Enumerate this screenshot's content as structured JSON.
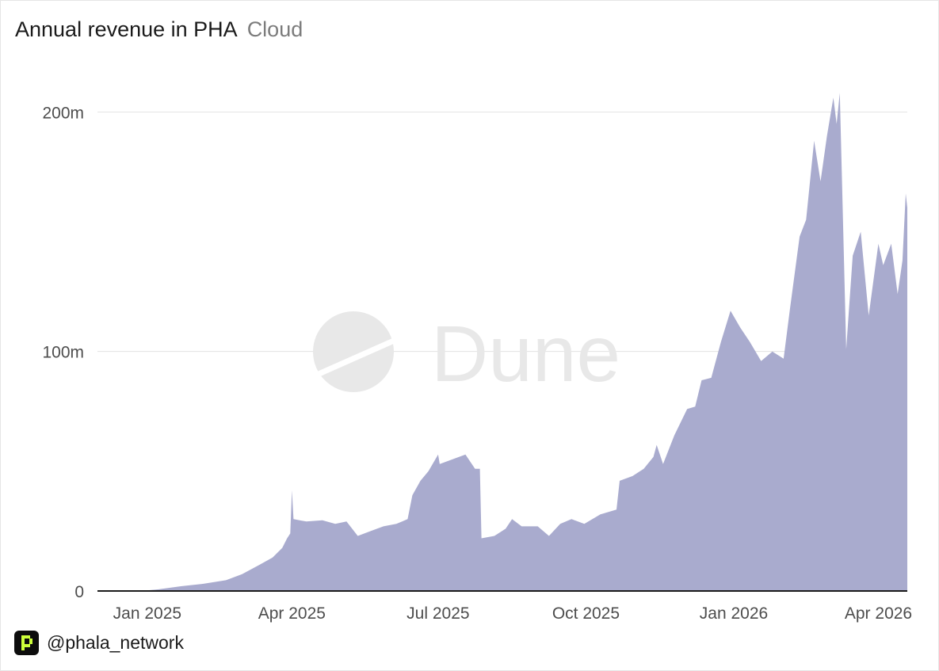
{
  "header": {
    "title": "Annual revenue in PHA",
    "subtitle": "Cloud"
  },
  "watermark": {
    "text": "Dune",
    "icon": "dune-logo-icon"
  },
  "footer": {
    "handle": "@phala_network",
    "icon": "phala-logo-icon"
  },
  "colors": {
    "area": "#a9abce",
    "grid": "#e3e3e3",
    "axis": "#1b1b1b",
    "text": "#4d4d4d",
    "logo_bg": "#0d0d0d",
    "logo_fg": "#cdff3a",
    "watermark": "#e8e8e8"
  },
  "chart_data": {
    "type": "area",
    "title": "Annual revenue in PHA",
    "subtitle": "Cloud",
    "xlabel": "",
    "ylabel": "",
    "y_ticks": [
      0,
      100,
      200
    ],
    "y_tick_labels": [
      "0",
      "100m",
      "200m"
    ],
    "ylim": [
      0,
      215
    ],
    "x_ticks": [
      "2025-01-01",
      "2025-04-01",
      "2025-07-01",
      "2025-10-01",
      "2026-01-01",
      "2026-04-01"
    ],
    "x_tick_labels": [
      "Jan 2025",
      "Apr 2025",
      "Jul 2025",
      "Oct 2025",
      "Jan 2026",
      "Apr 2026"
    ],
    "xlim": [
      "2024-12-01",
      "2026-04-19"
    ],
    "grid": true,
    "legend": "none",
    "series": [
      {
        "name": "Annual revenue in PHA",
        "unit": "m PHA",
        "points": [
          [
            "2024-12-01",
            0
          ],
          [
            "2024-12-28",
            0
          ],
          [
            "2025-01-08",
            0.7
          ],
          [
            "2025-01-22",
            2
          ],
          [
            "2025-02-05",
            3
          ],
          [
            "2025-02-19",
            4.5
          ],
          [
            "2025-03-01",
            7
          ],
          [
            "2025-03-12",
            11
          ],
          [
            "2025-03-20",
            14
          ],
          [
            "2025-03-26",
            18
          ],
          [
            "2025-03-29",
            22
          ],
          [
            "2025-03-31",
            24
          ],
          [
            "2025-04-01",
            42
          ],
          [
            "2025-04-02",
            30
          ],
          [
            "2025-04-10",
            29
          ],
          [
            "2025-04-20",
            29.5
          ],
          [
            "2025-04-28",
            28
          ],
          [
            "2025-05-05",
            29
          ],
          [
            "2025-05-12",
            23
          ],
          [
            "2025-05-20",
            25
          ],
          [
            "2025-05-28",
            27
          ],
          [
            "2025-06-05",
            28
          ],
          [
            "2025-06-12",
            30
          ],
          [
            "2025-06-15",
            40
          ],
          [
            "2025-06-20",
            46
          ],
          [
            "2025-06-25",
            50
          ],
          [
            "2025-07-01",
            57
          ],
          [
            "2025-07-02",
            53
          ],
          [
            "2025-07-10",
            55
          ],
          [
            "2025-07-18",
            57
          ],
          [
            "2025-07-24",
            51
          ],
          [
            "2025-07-27",
            51
          ],
          [
            "2025-07-28",
            22
          ],
          [
            "2025-08-05",
            23
          ],
          [
            "2025-08-12",
            26
          ],
          [
            "2025-08-16",
            30
          ],
          [
            "2025-08-22",
            27
          ],
          [
            "2025-09-01",
            27
          ],
          [
            "2025-09-08",
            23
          ],
          [
            "2025-09-15",
            28
          ],
          [
            "2025-09-22",
            30
          ],
          [
            "2025-09-30",
            28
          ],
          [
            "2025-10-10",
            32
          ],
          [
            "2025-10-20",
            34
          ],
          [
            "2025-10-22",
            46
          ],
          [
            "2025-10-30",
            48
          ],
          [
            "2025-11-06",
            51
          ],
          [
            "2025-11-12",
            56
          ],
          [
            "2025-11-14",
            61
          ],
          [
            "2025-11-18",
            53
          ],
          [
            "2025-11-25",
            65
          ],
          [
            "2025-12-03",
            76
          ],
          [
            "2025-12-08",
            77
          ],
          [
            "2025-12-12",
            88
          ],
          [
            "2025-12-18",
            89
          ],
          [
            "2025-12-24",
            104
          ],
          [
            "2025-12-30",
            117
          ],
          [
            "2026-01-05",
            110
          ],
          [
            "2026-01-11",
            104
          ],
          [
            "2026-01-18",
            96
          ],
          [
            "2026-01-25",
            100
          ],
          [
            "2026-02-01",
            97
          ],
          [
            "2026-02-05",
            118
          ],
          [
            "2026-02-11",
            148
          ],
          [
            "2026-02-15",
            155
          ],
          [
            "2026-02-20",
            188
          ],
          [
            "2026-02-24",
            171
          ],
          [
            "2026-02-28",
            190
          ],
          [
            "2026-03-04",
            206
          ],
          [
            "2026-03-06",
            195
          ],
          [
            "2026-03-08",
            208
          ],
          [
            "2026-03-12",
            101
          ],
          [
            "2026-03-16",
            140
          ],
          [
            "2026-03-21",
            150
          ],
          [
            "2026-03-26",
            115
          ],
          [
            "2026-04-01",
            145
          ],
          [
            "2026-04-04",
            136
          ],
          [
            "2026-04-09",
            145
          ],
          [
            "2026-04-13",
            124
          ],
          [
            "2026-04-16",
            138
          ],
          [
            "2026-04-18",
            166
          ],
          [
            "2026-04-19",
            160
          ]
        ]
      }
    ]
  }
}
